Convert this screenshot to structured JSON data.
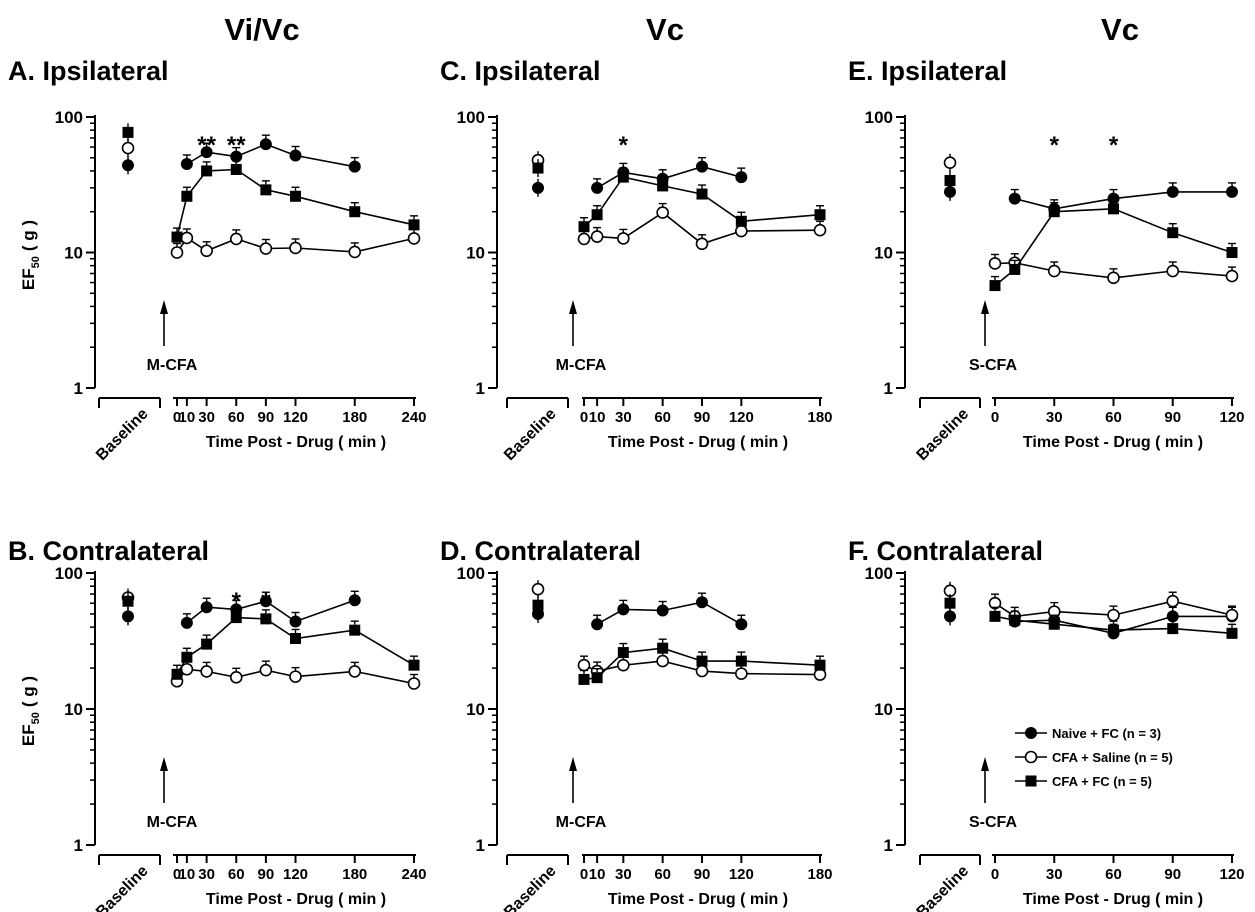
{
  "column_titles": [
    "Vi/Vc",
    "Vc",
    "Vc"
  ],
  "legend": {
    "entries": [
      {
        "label": "Naive + FC  (n = 3)",
        "marker": "filled-circle"
      },
      {
        "label": "CFA + Saline (n = 5)",
        "marker": "open-circle"
      },
      {
        "label": "CFA + FC (n = 5)",
        "marker": "filled-square"
      }
    ]
  },
  "chart_data": [
    {
      "id": "A",
      "type": "line",
      "title": "A. Ipsilateral",
      "xlabel": "Time Post - Drug ( min )",
      "ylabel": "EF",
      "ylabel_sub": "50",
      "ylabel_unit": "( g )",
      "yscale": "log",
      "ylim": [
        1,
        100
      ],
      "yticks": [
        "1",
        "10",
        "100"
      ],
      "xlim": [
        0,
        240
      ],
      "xticks": [
        "0",
        "10",
        "30",
        "60",
        "90",
        "120",
        "180",
        "240"
      ],
      "baseline_label": "Baseline",
      "arrow_label": "M-CFA",
      "annotations": [
        {
          "text": "**",
          "x": 30
        },
        {
          "text": "**",
          "x": 60
        }
      ],
      "series": [
        {
          "marker": "filled-circle",
          "baseline": 44,
          "x": [
            10,
            30,
            60,
            90,
            120,
            180
          ],
          "values": [
            45,
            55,
            51,
            63,
            52,
            43
          ]
        },
        {
          "marker": "open-circle",
          "baseline": 59,
          "x": [
            0,
            10,
            30,
            60,
            90,
            120,
            180,
            240
          ],
          "values": [
            10,
            12.8,
            10.3,
            12.6,
            10.7,
            10.8,
            10.1,
            12.7
          ]
        },
        {
          "marker": "filled-square",
          "baseline": 77,
          "x": [
            0,
            10,
            30,
            60,
            90,
            120,
            180,
            240
          ],
          "values": [
            13,
            26,
            40,
            41,
            29,
            26,
            20,
            16
          ]
        }
      ]
    },
    {
      "id": "B",
      "type": "line",
      "title": "B. Contralateral",
      "xlabel": "Time Post - Drug ( min )",
      "ylabel": "EF",
      "ylabel_sub": "50",
      "ylabel_unit": "( g )",
      "yscale": "log",
      "ylim": [
        1,
        100
      ],
      "yticks": [
        "1",
        "10",
        "100"
      ],
      "xlim": [
        0,
        240
      ],
      "xticks": [
        "0",
        "10",
        "30",
        "60",
        "90",
        "120",
        "180",
        "240"
      ],
      "baseline_label": "Baseline",
      "arrow_label": "M-CFA",
      "annotations": [
        {
          "text": "*",
          "x": 60
        },
        {
          "text": "*",
          "x": 90
        }
      ],
      "series": [
        {
          "marker": "filled-circle",
          "baseline": 48,
          "x": [
            10,
            30,
            60,
            90,
            120,
            180
          ],
          "values": [
            43,
            56,
            54,
            62,
            44,
            63
          ]
        },
        {
          "marker": "open-circle",
          "baseline": 66,
          "x": [
            0,
            10,
            30,
            60,
            90,
            120,
            180,
            240
          ],
          "values": [
            16,
            19.6,
            18.9,
            17.1,
            19.3,
            17.3,
            18.9,
            15.4
          ]
        },
        {
          "marker": "filled-square",
          "baseline": 62,
          "x": [
            0,
            10,
            30,
            60,
            90,
            120,
            180,
            240
          ],
          "values": [
            18,
            24,
            30,
            47,
            46,
            33,
            38,
            21
          ]
        }
      ]
    },
    {
      "id": "C",
      "type": "line",
      "title": "C. Ipsilateral",
      "xlabel": "Time Post - Drug ( min )",
      "ylabel": "",
      "yscale": "log",
      "ylim": [
        1,
        100
      ],
      "yticks": [
        "1",
        "10",
        "100"
      ],
      "xlim": [
        0,
        180
      ],
      "xticks": [
        "0",
        "10",
        "30",
        "60",
        "90",
        "120",
        "180"
      ],
      "baseline_label": "Baseline",
      "arrow_label": "M-CFA",
      "annotations": [
        {
          "text": "*",
          "x": 30
        }
      ],
      "series": [
        {
          "marker": "filled-circle",
          "baseline": 30,
          "x": [
            10,
            30,
            60,
            90,
            120
          ],
          "values": [
            30,
            39,
            35,
            43,
            36
          ]
        },
        {
          "marker": "open-circle",
          "baseline": 48,
          "x": [
            0,
            10,
            30,
            60,
            90,
            120,
            180
          ],
          "values": [
            12.6,
            13.1,
            12.7,
            19.7,
            11.6,
            14.4,
            14.6
          ]
        },
        {
          "marker": "filled-square",
          "baseline": 42,
          "x": [
            0,
            10,
            30,
            60,
            90,
            120,
            180
          ],
          "values": [
            15.5,
            19,
            36,
            31,
            27,
            17,
            19
          ]
        }
      ]
    },
    {
      "id": "D",
      "type": "line",
      "title": "D. Contralateral",
      "xlabel": "Time Post - Drug ( min )",
      "ylabel": "",
      "yscale": "log",
      "ylim": [
        1,
        100
      ],
      "yticks": [
        "1",
        "10",
        "100"
      ],
      "xlim": [
        0,
        180
      ],
      "xticks": [
        "0",
        "10",
        "30",
        "60",
        "90",
        "120",
        "180"
      ],
      "baseline_label": "Baseline",
      "arrow_label": "M-CFA",
      "annotations": [],
      "series": [
        {
          "marker": "filled-circle",
          "baseline": 50,
          "x": [
            10,
            30,
            60,
            90,
            120
          ],
          "values": [
            42,
            54,
            53,
            61,
            42
          ]
        },
        {
          "marker": "open-circle",
          "baseline": 76,
          "x": [
            0,
            10,
            30,
            60,
            90,
            120,
            180
          ],
          "values": [
            21,
            19,
            21,
            22.5,
            19,
            18.2,
            17.9
          ]
        },
        {
          "marker": "filled-square",
          "baseline": 58,
          "x": [
            0,
            10,
            30,
            60,
            90,
            120,
            180
          ],
          "values": [
            16.5,
            17,
            26,
            28,
            22.5,
            22.5,
            21
          ]
        }
      ]
    },
    {
      "id": "E",
      "type": "line",
      "title": "E. Ipsilateral",
      "xlabel": "Time Post - Drug ( min )",
      "ylabel": "",
      "yscale": "log",
      "ylim": [
        1,
        100
      ],
      "yticks": [
        "1",
        "10",
        "100"
      ],
      "xlim": [
        0,
        120
      ],
      "xticks": [
        "0",
        "30",
        "60",
        "90",
        "120"
      ],
      "baseline_label": "Baseline",
      "arrow_label": "S-CFA",
      "annotations": [
        {
          "text": "*",
          "x": 30
        },
        {
          "text": "*",
          "x": 60
        }
      ],
      "series": [
        {
          "marker": "filled-circle",
          "baseline": 28,
          "x": [
            10,
            30,
            60,
            90,
            120
          ],
          "values": [
            25,
            21,
            25,
            28,
            28
          ]
        },
        {
          "marker": "open-circle",
          "baseline": 46,
          "x": [
            0,
            10,
            30,
            60,
            90,
            120
          ],
          "values": [
            8.3,
            8.4,
            7.3,
            6.5,
            7.3,
            6.7
          ]
        },
        {
          "marker": "filled-square",
          "baseline": 34,
          "x": [
            0,
            10,
            30,
            60,
            90,
            120
          ],
          "values": [
            5.7,
            7.5,
            20,
            21,
            14,
            10
          ]
        }
      ]
    },
    {
      "id": "F",
      "type": "line",
      "title": "F. Contralateral",
      "xlabel": "Time Post - Drug ( min )",
      "ylabel": "",
      "yscale": "log",
      "ylim": [
        1,
        100
      ],
      "yticks": [
        "1",
        "10",
        "100"
      ],
      "xlim": [
        0,
        120
      ],
      "xticks": [
        "0",
        "30",
        "60",
        "90",
        "120"
      ],
      "baseline_label": "Baseline",
      "arrow_label": "S-CFA",
      "annotations": [],
      "series": [
        {
          "marker": "filled-circle",
          "baseline": 48,
          "x": [
            10,
            30,
            60,
            90,
            120
          ],
          "values": [
            44,
            45,
            36,
            48,
            48
          ]
        },
        {
          "marker": "open-circle",
          "baseline": 74,
          "x": [
            0,
            10,
            30,
            60,
            90,
            120
          ],
          "values": [
            60,
            48,
            52,
            49,
            62,
            49
          ]
        },
        {
          "marker": "filled-square",
          "baseline": 60,
          "x": [
            0,
            10,
            30,
            60,
            90,
            120
          ],
          "values": [
            48,
            45,
            42,
            38,
            39,
            36
          ]
        }
      ]
    }
  ]
}
